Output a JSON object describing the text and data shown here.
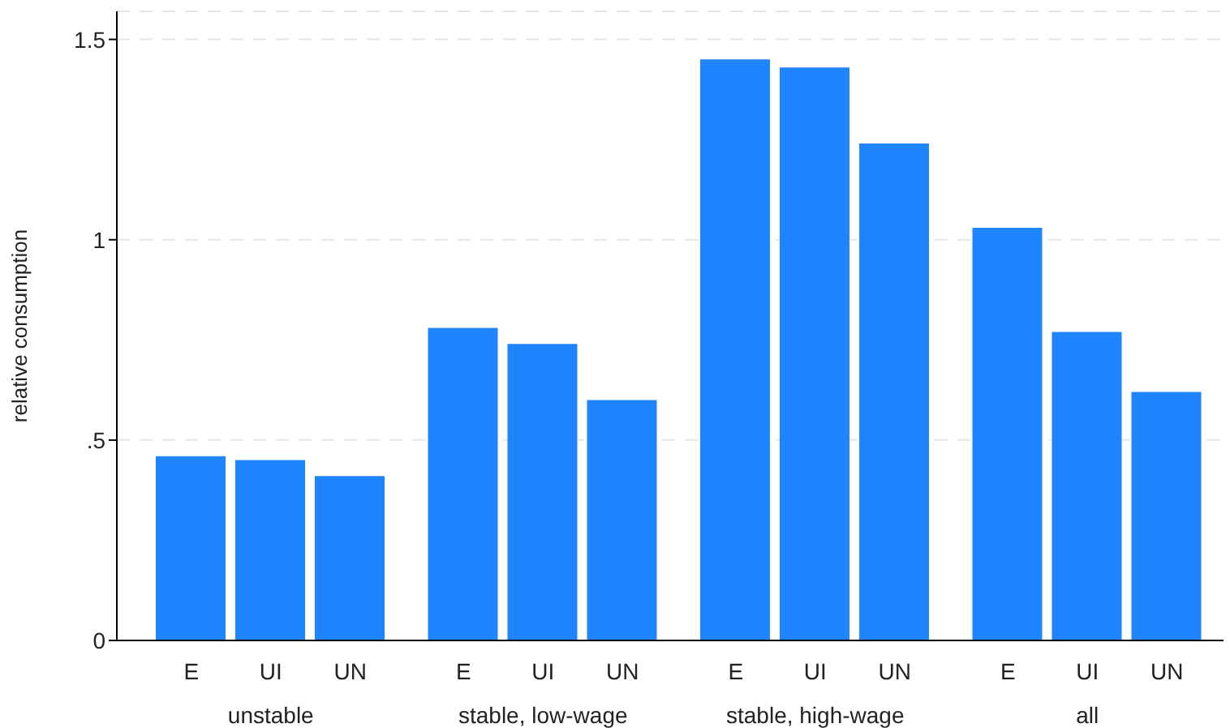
{
  "chart_data": {
    "type": "bar",
    "ylabel": "relative consumption",
    "categories": [
      "unstable",
      "stable, low-wage",
      "stable, high-wage",
      "all"
    ],
    "series": [
      {
        "name": "E",
        "color": "#1e85ff",
        "values": [
          0.46,
          0.78,
          1.45,
          1.03
        ]
      },
      {
        "name": "UI",
        "color": "#1e85ff",
        "values": [
          0.45,
          0.74,
          1.43,
          0.77
        ]
      },
      {
        "name": "UN",
        "color": "#1e85ff",
        "values": [
          0.41,
          0.6,
          1.24,
          0.62
        ]
      }
    ],
    "ylim": [
      0,
      1.57
    ],
    "yticks": [
      0,
      {
        "value": 0.5,
        "label": ".5"
      },
      1,
      1.5
    ],
    "grid": "y"
  }
}
